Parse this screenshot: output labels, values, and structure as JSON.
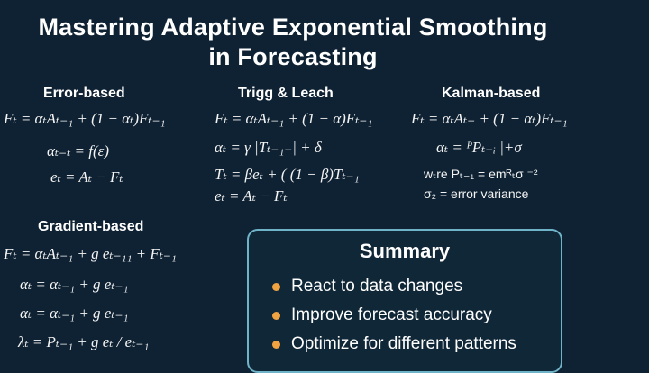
{
  "title": {
    "line1": "Mastering Adaptive Exponential Smoothing",
    "line2": "in Forecasting"
  },
  "sections": {
    "error_based": {
      "heading": "Error-based",
      "lines": [
        "Fₜ = αₜAₜ₋₁ + (1 − αₜ)Fₜ₋₁",
        "αₜ₋ₜ = f(ε)",
        "eₜ = Aₜ − Fₜ"
      ]
    },
    "trigg_leach": {
      "heading": "Trigg & Leach",
      "lines": [
        "Fₜ = αₜAₜ₋₁ + (1 − α)Fₜ₋₁",
        "αₜ = γ |Tₜ₋₁₋| + δ",
        "Tₜ = βeₜ + ( (1 − β)Tₜ₋₁",
        "eₜ = Aₜ − Fₜ"
      ]
    },
    "kalman_based": {
      "heading": "Kalman-based",
      "lines": [
        "Fₜ = αₜAₜ₋ + (1 − αₜ)Fₜ₋₁",
        "αₜ = ᴾPₜ₋ᵢ |+σ"
      ],
      "notes": [
        "wₜre Pₜ₋₁ = emᴿₜσ ⁻²",
        "σ₂ = error variance"
      ]
    },
    "gradient_based": {
      "heading": "Gradient-based",
      "lines": [
        "Fₜ = αₜAₜ₋₁ + g eₜ₋₁₁ + Fₜ₋₁",
        "αₜ = αₜ₋₁ + g eₜ₋₁",
        "αₜ = αₜ₋₁ + g eₜ₋₁",
        "λₜ = Pₜ₋₁ + g eₜ / eₜ₋₁"
      ]
    }
  },
  "summary": {
    "title": "Summary",
    "items": [
      "React to data changes",
      "Improve forecast accuracy",
      "Optimize for different patterns"
    ]
  },
  "colors": {
    "background": "#0f2233",
    "box_border": "#6fb3c8",
    "bullet": "#f0a340"
  }
}
